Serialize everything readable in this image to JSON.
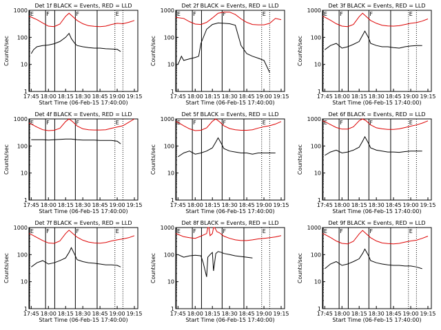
{
  "chart_data": {
    "type": "line",
    "figure": "grid-of-time-series",
    "y_scale": "log",
    "ylim": [
      1,
      1000
    ],
    "y_ticks": [
      "1",
      "10",
      "100",
      "1000"
    ],
    "ylabel": "Counts/sec",
    "x_ticks": [
      "17:45",
      "18:00",
      "18:15",
      "18:30",
      "18:45",
      "19:00",
      "19:15"
    ],
    "x_tick_minutes": [
      0,
      15,
      30,
      45,
      60,
      75,
      90
    ],
    "x_range_minutes": [
      -2,
      93
    ],
    "xlabel": "Start Time (06-Feb-15 17:40:00)",
    "colors": {
      "events": "#000000",
      "lld": "#dd0000"
    },
    "markers": [
      {
        "label": "E",
        "minute": -1.5,
        "style": "solid"
      },
      {
        "label": "F",
        "minute": 12.5,
        "style": "solid"
      },
      {
        "label": "",
        "minute": 20.5,
        "style": "solid"
      },
      {
        "label": "F",
        "minute": 38.5,
        "style": "solid"
      },
      {
        "label": "",
        "minute": 57.5,
        "style": "solid"
      },
      {
        "label": "E",
        "minute": 73,
        "style": "dotted"
      },
      {
        "label": "",
        "minute": 80,
        "style": "dotted"
      }
    ],
    "panels": [
      {
        "title": "Det 1f BLACK = Events, RED = LLD",
        "series": [
          {
            "name": "Events",
            "color": "#000000",
            "x": [
              0,
              2,
              5,
              10,
              15,
              20,
              25,
              30,
              33,
              35,
              38,
              40,
              45,
              50,
              55,
              60,
              65,
              70,
              75,
              78
            ],
            "y": [
              25,
              35,
              45,
              50,
              52,
              58,
              70,
              100,
              140,
              90,
              60,
              50,
              45,
              42,
              40,
              40,
              38,
              37,
              36,
              30
            ]
          },
          {
            "name": "LLD",
            "color": "#dd0000",
            "x": [
              -2,
              0,
              5,
              10,
              15,
              20,
              25,
              30,
              33,
              36,
              40,
              45,
              50,
              55,
              60,
              65,
              70,
              75,
              80,
              85,
              90
            ],
            "y": [
              600,
              560,
              450,
              340,
              260,
              250,
              310,
              600,
              780,
              600,
              420,
              320,
              270,
              255,
              250,
              260,
              300,
              330,
              320,
              360,
              420
            ]
          }
        ]
      },
      {
        "title": "Det 2f BLACK = Events, RED = LLD",
        "series": [
          {
            "name": "Events",
            "color": "#000000",
            "x": [
              0,
              3,
              5,
              10,
              15,
              18,
              20,
              25,
              30,
              35,
              40,
              45,
              50,
              55,
              60,
              65,
              70,
              75,
              80
            ],
            "y": [
              10,
              20,
              14,
              16,
              18,
              20,
              60,
              200,
              300,
              340,
              330,
              320,
              280,
              50,
              25,
              20,
              17,
              14,
              5
            ]
          },
          {
            "name": "LLD",
            "color": "#dd0000",
            "x": [
              -2,
              5,
              10,
              15,
              20,
              25,
              30,
              35,
              40,
              45,
              50,
              55,
              60,
              65,
              70,
              75,
              80,
              85,
              90
            ],
            "y": [
              550,
              500,
              380,
              310,
              300,
              360,
              520,
              780,
              860,
              860,
              700,
              480,
              360,
              300,
              290,
              290,
              330,
              500,
              450
            ]
          }
        ]
      },
      {
        "title": "Det 3f BLACK = Events, RED = LLD",
        "series": [
          {
            "name": "Events",
            "color": "#000000",
            "x": [
              0,
              5,
              10,
              15,
              20,
              25,
              30,
              33,
              35,
              38,
              40,
              45,
              50,
              55,
              60,
              65,
              70,
              75,
              80,
              85
            ],
            "y": [
              35,
              50,
              60,
              40,
              45,
              55,
              70,
              120,
              170,
              100,
              60,
              50,
              45,
              45,
              42,
              40,
              45,
              48,
              50,
              50
            ]
          },
          {
            "name": "LLD",
            "color": "#dd0000",
            "x": [
              -2,
              0,
              5,
              10,
              15,
              20,
              25,
              30,
              33,
              36,
              40,
              45,
              50,
              55,
              60,
              65,
              70,
              75,
              80,
              85,
              90
            ],
            "y": [
              600,
              560,
              430,
              320,
              260,
              250,
              300,
              580,
              780,
              600,
              420,
              330,
              280,
              265,
              260,
              270,
              300,
              330,
              350,
              400,
              480
            ]
          }
        ]
      },
      {
        "title": "Det 4f BLACK = Events, RED = LLD",
        "series": [
          {
            "name": "Events",
            "color": "#000000",
            "x": [
              0,
              5,
              10,
              15,
              20,
              25,
              30,
              35,
              40,
              45,
              50,
              55,
              60,
              65,
              70,
              75,
              78
            ],
            "y": [
              170,
              170,
              170,
              165,
              170,
              175,
              180,
              180,
              170,
              165,
              165,
              165,
              160,
              160,
              160,
              150,
              120
            ]
          },
          {
            "name": "LLD",
            "color": "#dd0000",
            "x": [
              -2,
              0,
              5,
              10,
              15,
              20,
              25,
              30,
              33,
              36,
              40,
              45,
              50,
              55,
              60,
              65,
              70,
              75,
              80,
              85,
              90
            ],
            "y": [
              700,
              650,
              500,
              400,
              370,
              380,
              450,
              800,
              1000,
              800,
              550,
              430,
              400,
              390,
              390,
              400,
              450,
              500,
              560,
              750,
              1100
            ]
          }
        ]
      },
      {
        "title": "Det 5f BLACK = Events, RED = LLD",
        "series": [
          {
            "name": "Events",
            "color": "#000000",
            "x": [
              0,
              5,
              10,
              15,
              20,
              25,
              30,
              33,
              35,
              38,
              40,
              45,
              50,
              55,
              60,
              65,
              70,
              75,
              80,
              85
            ],
            "y": [
              40,
              55,
              65,
              50,
              55,
              65,
              85,
              140,
              200,
              120,
              80,
              65,
              60,
              55,
              55,
              50,
              55,
              55,
              55,
              55
            ]
          },
          {
            "name": "LLD",
            "color": "#dd0000",
            "x": [
              -2,
              0,
              5,
              10,
              15,
              20,
              25,
              30,
              33,
              36,
              40,
              45,
              50,
              55,
              60,
              65,
              70,
              75,
              80,
              85,
              90
            ],
            "y": [
              800,
              750,
              560,
              430,
              370,
              380,
              470,
              820,
              1000,
              800,
              560,
              440,
              400,
              380,
              380,
              400,
              460,
              520,
              560,
              650,
              800
            ]
          }
        ]
      },
      {
        "title": "Det 6f BLACK = Events, RED = LLD",
        "series": [
          {
            "name": "Events",
            "color": "#000000",
            "x": [
              0,
              5,
              10,
              15,
              20,
              25,
              30,
              33,
              35,
              38,
              40,
              45,
              50,
              55,
              60,
              65,
              70,
              75,
              80,
              85
            ],
            "y": [
              45,
              60,
              70,
              55,
              60,
              70,
              90,
              150,
              220,
              130,
              85,
              70,
              65,
              60,
              60,
              58,
              62,
              65,
              65,
              65
            ]
          },
          {
            "name": "LLD",
            "color": "#dd0000",
            "x": [
              -2,
              0,
              5,
              10,
              15,
              20,
              25,
              30,
              33,
              36,
              40,
              45,
              50,
              55,
              60,
              65,
              70,
              75,
              80,
              85,
              90
            ],
            "y": [
              850,
              800,
              620,
              480,
              420,
              420,
              510,
              860,
              1000,
              860,
              600,
              470,
              430,
              410,
              410,
              430,
              480,
              540,
              600,
              700,
              850
            ]
          }
        ]
      },
      {
        "title": "Det 7f BLACK = Events, RED = LLD",
        "series": [
          {
            "name": "Events",
            "color": "#000000",
            "x": [
              0,
              5,
              10,
              15,
              20,
              25,
              30,
              33,
              35,
              38,
              40,
              45,
              50,
              55,
              60,
              65,
              70,
              75,
              78
            ],
            "y": [
              35,
              50,
              60,
              45,
              50,
              60,
              75,
              120,
              180,
              100,
              65,
              55,
              50,
              48,
              45,
              42,
              42,
              40,
              35
            ]
          },
          {
            "name": "LLD",
            "color": "#dd0000",
            "x": [
              -2,
              0,
              5,
              10,
              15,
              20,
              25,
              30,
              33,
              36,
              40,
              45,
              50,
              55,
              60,
              65,
              70,
              75,
              80,
              85,
              90
            ],
            "y": [
              600,
              560,
              430,
              330,
              270,
              260,
              320,
              600,
              800,
              620,
              440,
              340,
              290,
              270,
              265,
              280,
              320,
              350,
              380,
              420,
              500
            ]
          }
        ]
      },
      {
        "title": "Det 8f BLACK = Events, RED = LLD",
        "series": [
          {
            "name": "Events",
            "color": "#000000",
            "x": [
              0,
              5,
              10,
              15,
              20,
              22,
              25,
              26,
              28,
              30,
              31,
              33,
              35,
              38,
              40,
              45,
              50,
              55,
              60,
              65
            ],
            "y": [
              100,
              80,
              90,
              95,
              90,
              50,
              15,
              80,
              100,
              120,
              25,
              110,
              130,
              120,
              110,
              100,
              90,
              85,
              80,
              75
            ]
          },
          {
            "name": "LLD",
            "color": "#dd0000",
            "x": [
              -2,
              0,
              5,
              10,
              15,
              20,
              25,
              26,
              27,
              28,
              30,
              31,
              32,
              34,
              36,
              40,
              45,
              50,
              55,
              60,
              65,
              70,
              75,
              80,
              85,
              90
            ],
            "y": [
              600,
              560,
              460,
              420,
              400,
              480,
              600,
              1000,
              1000,
              500,
              600,
              1000,
              1000,
              700,
              650,
              480,
              400,
              350,
              330,
              330,
              350,
              380,
              400,
              420,
              450,
              500
            ]
          }
        ]
      },
      {
        "title": "Det 9f BLACK = Events, RED = LLD",
        "series": [
          {
            "name": "Events",
            "color": "#000000",
            "x": [
              0,
              5,
              10,
              15,
              20,
              25,
              30,
              33,
              35,
              38,
              40,
              45,
              50,
              55,
              60,
              65,
              70,
              75,
              80,
              85
            ],
            "y": [
              30,
              45,
              55,
              40,
              45,
              55,
              70,
              110,
              160,
              95,
              60,
              50,
              45,
              42,
              40,
              40,
              38,
              38,
              35,
              30
            ]
          },
          {
            "name": "LLD",
            "color": "#dd0000",
            "x": [
              -2,
              0,
              5,
              10,
              15,
              20,
              25,
              30,
              33,
              36,
              40,
              45,
              50,
              55,
              60,
              65,
              70,
              75,
              80,
              85,
              90
            ],
            "y": [
              600,
              560,
              430,
              320,
              260,
              250,
              310,
              580,
              780,
              600,
              420,
              320,
              270,
              255,
              250,
              260,
              290,
              320,
              340,
              400,
              480
            ]
          }
        ]
      }
    ]
  }
}
